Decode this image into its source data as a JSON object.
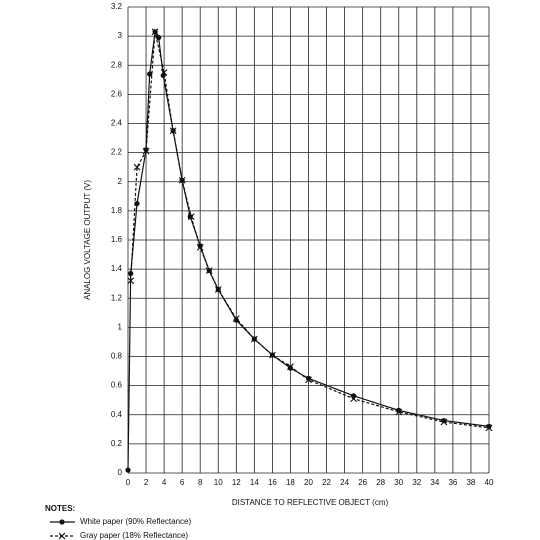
{
  "chart_data": {
    "type": "line",
    "xlabel": "DISTANCE TO REFLECTIVE OBJECT (cm)",
    "ylabel": "ANALOG VOLTAGE OUTPUT (V)",
    "legend_title": "NOTES:",
    "xlim": [
      0,
      40
    ],
    "xticks": [
      0,
      2,
      4,
      6,
      8,
      10,
      12,
      14,
      16,
      18,
      20,
      22,
      24,
      26,
      28,
      30,
      32,
      34,
      36,
      38,
      40
    ],
    "ylim": [
      0,
      3.2
    ],
    "yticks": [
      0,
      0.2,
      0.4,
      0.6,
      0.8,
      1,
      1.2,
      1.4,
      1.6,
      1.8,
      2,
      2.2,
      2.4,
      2.6,
      2.8,
      3,
      3.2
    ],
    "grid": true,
    "series": [
      {
        "name": "White paper (90% Reflectance)",
        "color": "#111111",
        "marker": "circle",
        "dashed": false,
        "x": [
          0,
          0.3,
          1,
          2,
          2.4,
          3,
          3.4,
          3.9,
          5,
          6,
          6.9,
          8,
          9,
          10,
          12,
          14,
          16,
          18,
          20,
          25,
          30,
          35,
          40
        ],
        "values": [
          0.02,
          1.37,
          1.85,
          2.22,
          2.74,
          3.03,
          2.99,
          2.73,
          2.35,
          2.01,
          1.76,
          1.56,
          1.39,
          1.26,
          1.05,
          0.92,
          0.81,
          0.72,
          0.65,
          0.53,
          0.43,
          0.36,
          0.32
        ]
      },
      {
        "name": "Gray paper (18% Reflectance)",
        "color": "#111111",
        "marker": "x",
        "dashed": true,
        "x": [
          0.3,
          1,
          2,
          3,
          4,
          5,
          6,
          7,
          8,
          9,
          10,
          12,
          14,
          16,
          18,
          20,
          25,
          30,
          35,
          40
        ],
        "values": [
          1.32,
          2.1,
          2.21,
          3.03,
          2.75,
          2.35,
          2.01,
          1.76,
          1.55,
          1.39,
          1.26,
          1.06,
          0.92,
          0.81,
          0.73,
          0.64,
          0.51,
          0.42,
          0.35,
          0.31
        ]
      }
    ]
  }
}
